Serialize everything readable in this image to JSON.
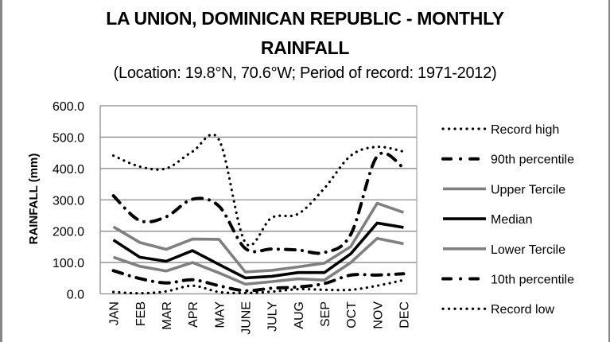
{
  "chart_data": {
    "type": "line",
    "title_line1": "LA UNION, DOMINICAN REPUBLIC - MONTHLY",
    "title_line2": "RAINFALL",
    "subtitle": "(Location: 19.8°N, 70.6°W; Period of record: 1971-2012)",
    "xlabel": "",
    "ylabel": "RAINFALL (mm)",
    "ylim": [
      0,
      600
    ],
    "yticks": [
      "0.0",
      "100.0",
      "200.0",
      "300.0",
      "400.0",
      "500.0",
      "600.0"
    ],
    "ytick_values": [
      0,
      100,
      200,
      300,
      400,
      500,
      600
    ],
    "grid": true,
    "legend_position": "right",
    "categories": [
      "JAN",
      "FEB",
      "MAR",
      "APR",
      "MAY",
      "JUNE",
      "JULY",
      "AUG",
      "SEP",
      "OCT",
      "NOV",
      "DEC"
    ],
    "series": [
      {
        "name": "Record high",
        "style": "dotted",
        "color": "#000000",
        "values": [
          441,
          406,
          400,
          454,
          492,
          164,
          243,
          255,
          337,
          441,
          469,
          454
        ]
      },
      {
        "name": "90th percentile",
        "style": "dashdot",
        "color": "#000000",
        "values": [
          313,
          234,
          246,
          302,
          280,
          145,
          143,
          140,
          132,
          190,
          439,
          402
        ]
      },
      {
        "name": "Upper Tercile",
        "style": "solid",
        "color": "#808080",
        "values": [
          214,
          164,
          142,
          175,
          174,
          70,
          75,
          86,
          98,
          151,
          289,
          260
        ]
      },
      {
        "name": "Median",
        "style": "solid",
        "color": "#000000",
        "values": [
          172,
          117,
          104,
          138,
          94,
          51,
          56,
          68,
          68,
          128,
          226,
          212
        ]
      },
      {
        "name": "Lower Tercile",
        "style": "solid",
        "color": "#808080",
        "values": [
          117,
          88,
          73,
          100,
          67,
          31,
          39,
          48,
          44,
          100,
          177,
          160
        ]
      },
      {
        "name": "10th percentile",
        "style": "dashdot",
        "color": "#000000",
        "values": [
          74,
          49,
          35,
          45,
          26,
          10,
          18,
          22,
          33,
          60,
          60,
          64
        ]
      },
      {
        "name": "Record low",
        "style": "dotted",
        "color": "#000000",
        "values": [
          6,
          2,
          8,
          26,
          6,
          3,
          7,
          15,
          13,
          13,
          26,
          44
        ]
      }
    ]
  }
}
